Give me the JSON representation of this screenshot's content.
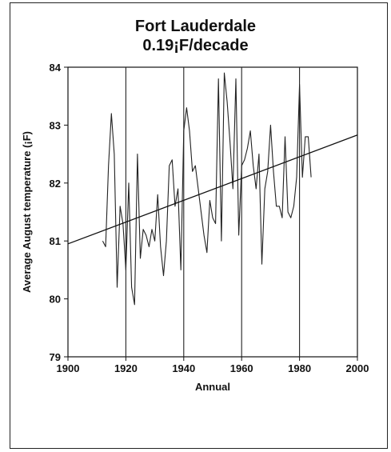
{
  "chart_data": {
    "type": "line",
    "title": "Fort Lauderdale",
    "subtitle": "0.19¡F/decade",
    "xlabel": "Annual",
    "ylabel": "Average August temperature (¡F)",
    "xlim": [
      1900,
      2000
    ],
    "ylim": [
      79,
      84
    ],
    "xticks": [
      1900,
      1920,
      1940,
      1960,
      1980,
      2000
    ],
    "yticks": [
      79,
      80,
      81,
      82,
      83,
      84
    ],
    "vertical_gridlines": [
      1920,
      1940,
      1960,
      1980
    ],
    "grid": "vertical only",
    "legend": "none",
    "colors": {
      "line": "#222222",
      "trend": "#111111"
    },
    "series": [
      {
        "values": [
          [
            1912,
            81.0
          ],
          [
            1913,
            80.9
          ],
          [
            1914,
            82.3
          ],
          [
            1915,
            83.2
          ],
          [
            1916,
            82.5
          ],
          [
            1917,
            80.2
          ],
          [
            1918,
            81.6
          ],
          [
            1919,
            81.3
          ],
          [
            1920,
            80.5
          ],
          [
            1921,
            82.0
          ],
          [
            1922,
            80.2
          ],
          [
            1923,
            79.9
          ],
          [
            1924,
            82.5
          ],
          [
            1925,
            80.7
          ],
          [
            1926,
            81.2
          ],
          [
            1927,
            81.1
          ],
          [
            1928,
            80.9
          ],
          [
            1929,
            81.2
          ],
          [
            1930,
            81.0
          ],
          [
            1931,
            81.8
          ],
          [
            1932,
            80.9
          ],
          [
            1933,
            80.4
          ],
          [
            1934,
            81.0
          ],
          [
            1935,
            82.3
          ],
          [
            1936,
            82.4
          ],
          [
            1937,
            81.6
          ],
          [
            1938,
            81.9
          ],
          [
            1939,
            80.5
          ],
          [
            1940,
            82.9
          ],
          [
            1941,
            83.3
          ],
          [
            1942,
            82.9
          ],
          [
            1943,
            82.2
          ],
          [
            1944,
            82.3
          ],
          [
            1945,
            81.9
          ],
          [
            1946,
            81.5
          ],
          [
            1947,
            81.1
          ],
          [
            1948,
            80.8
          ],
          [
            1949,
            81.7
          ],
          [
            1950,
            81.4
          ],
          [
            1951,
            81.3
          ],
          [
            1952,
            83.8
          ],
          [
            1953,
            81.0
          ],
          [
            1954,
            83.9
          ],
          [
            1955,
            83.4
          ],
          [
            1956,
            82.7
          ],
          [
            1957,
            81.9
          ],
          [
            1958,
            83.8
          ],
          [
            1959,
            81.1
          ],
          [
            1960,
            82.3
          ],
          [
            1961,
            82.4
          ],
          [
            1962,
            82.6
          ],
          [
            1963,
            82.9
          ],
          [
            1964,
            82.3
          ],
          [
            1965,
            81.9
          ],
          [
            1966,
            82.5
          ],
          [
            1967,
            80.6
          ],
          [
            1968,
            81.9
          ],
          [
            1969,
            82.2
          ],
          [
            1970,
            83.0
          ],
          [
            1971,
            82.2
          ],
          [
            1972,
            81.6
          ],
          [
            1973,
            81.6
          ],
          [
            1974,
            81.4
          ],
          [
            1975,
            82.8
          ],
          [
            1976,
            81.5
          ],
          [
            1977,
            81.4
          ],
          [
            1978,
            81.6
          ],
          [
            1979,
            82.1
          ],
          [
            1980,
            83.7
          ],
          [
            1981,
            82.1
          ],
          [
            1982,
            82.8
          ],
          [
            1983,
            82.8
          ],
          [
            1984,
            82.1
          ]
        ]
      }
    ],
    "trendline": {
      "x": [
        1900,
        2000
      ],
      "y": [
        80.95,
        82.83
      ]
    }
  }
}
